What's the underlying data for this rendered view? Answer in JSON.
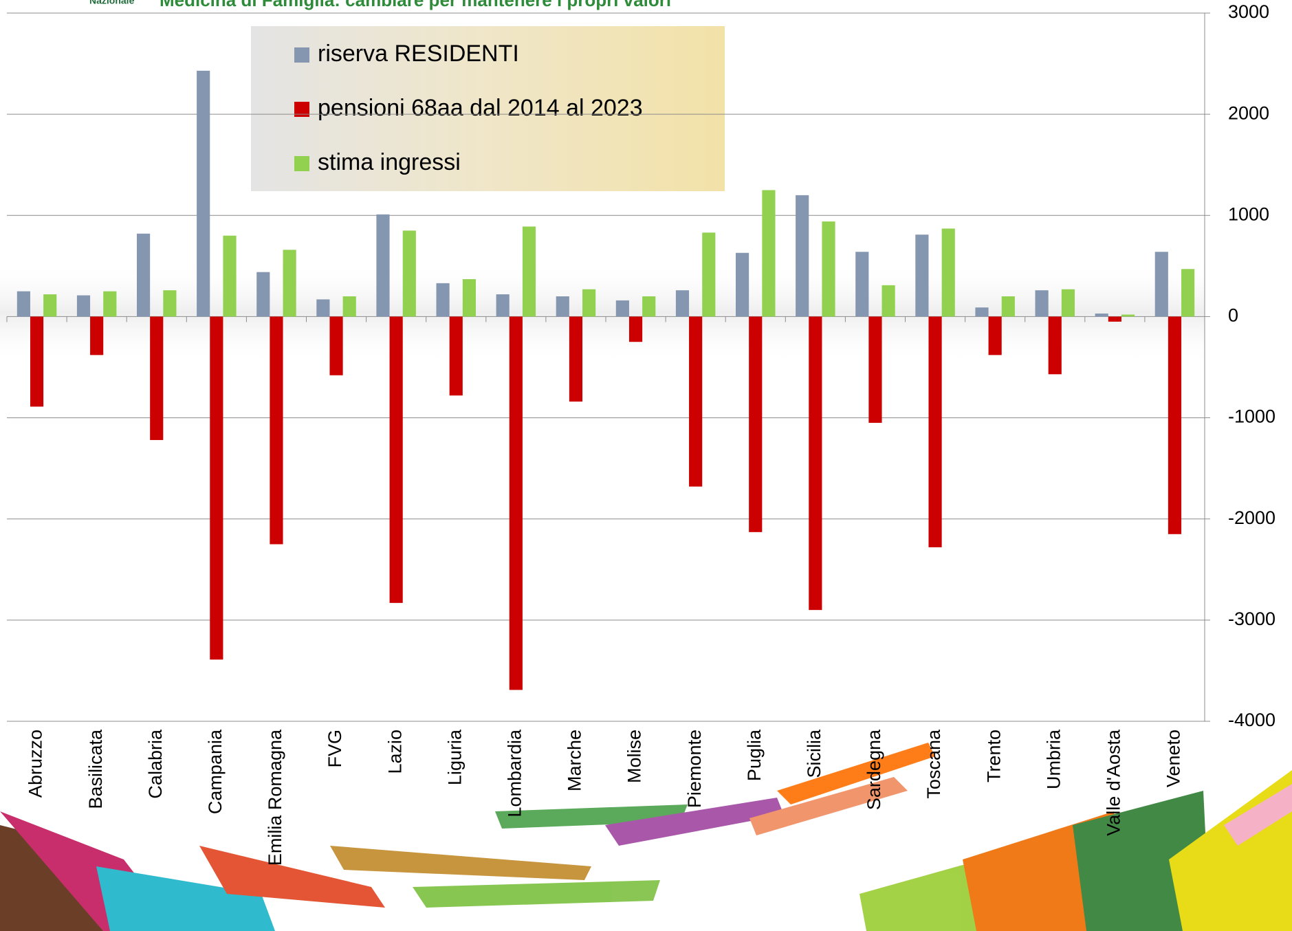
{
  "header": {
    "org": "Nazionale",
    "title": "Medicina di Famiglia: cambiare per mantenere i propri valori"
  },
  "chart_data": {
    "type": "bar",
    "categories": [
      "Abruzzo",
      "Basilicata",
      "Calabria",
      "Campania",
      "Emilia Romagna",
      "FVG",
      "Lazio",
      "Liguria",
      "Lombardia",
      "Marche",
      "Molise",
      "Piemonte",
      "Puglia",
      "Sicilia",
      "Sardegna",
      "Toscana",
      "Trento",
      "Umbria",
      "Valle d'Aosta",
      "Veneto"
    ],
    "series": [
      {
        "name": "riserva RESIDENTI",
        "color": "#8496b0",
        "values": [
          250,
          210,
          820,
          2430,
          440,
          170,
          1010,
          330,
          220,
          200,
          160,
          260,
          630,
          1200,
          640,
          810,
          90,
          260,
          30,
          640
        ]
      },
      {
        "name": "pensioni 68aa dal 2014 al 2023",
        "color": "#cc0000",
        "values": [
          -890,
          -380,
          -1220,
          -3390,
          -2250,
          -580,
          -2830,
          -780,
          -3690,
          -840,
          -250,
          -1680,
          -2130,
          -2900,
          -1050,
          -2280,
          -380,
          -570,
          -50,
          -2150
        ]
      },
      {
        "name": "stima ingressi",
        "color": "#92d050",
        "values": [
          220,
          250,
          260,
          800,
          660,
          200,
          850,
          370,
          890,
          270,
          200,
          830,
          1250,
          940,
          310,
          870,
          200,
          270,
          20,
          470
        ]
      }
    ],
    "ylim": [
      -4000,
      3000
    ],
    "yticks": [
      -4000,
      -3000,
      -2000,
      -1000,
      0,
      1000,
      2000,
      3000
    ],
    "grid": true
  }
}
